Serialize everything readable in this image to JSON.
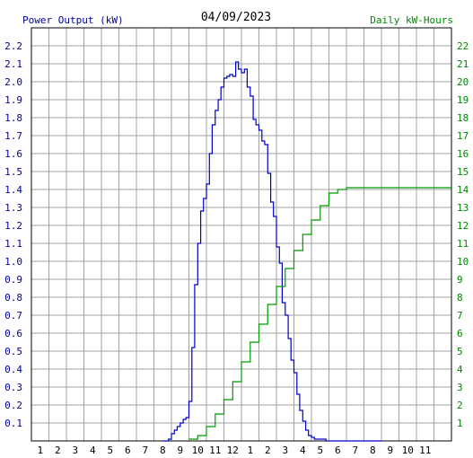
{
  "chart_data": {
    "type": "line",
    "title": "04/09/2023",
    "left_axis_label": "Power Output (kW)",
    "right_axis_label": "Daily kW-Hours",
    "x_ticks": [
      "1",
      "2",
      "3",
      "4",
      "5",
      "6",
      "7",
      "8",
      "9",
      "10",
      "11",
      "12",
      "1",
      "2",
      "3",
      "4",
      "5",
      "6",
      "7",
      "8",
      "9",
      "10",
      "11"
    ],
    "left_ticks": [
      "2.2",
      "2.1",
      "2.0",
      "1.9",
      "1.8",
      "1.7",
      "1.6",
      "1.5",
      "1.4",
      "1.3",
      "1.2",
      "1.1",
      "1.0",
      "0.9",
      "0.8",
      "0.7",
      "0.6",
      "0.5",
      "0.4",
      "0.3",
      "0.2",
      "0.1"
    ],
    "right_ticks": [
      "22",
      "21",
      "20",
      "19",
      "18",
      "17",
      "16",
      "15",
      "14",
      "13",
      "12",
      "11",
      "10",
      "9",
      "8",
      "7",
      "6",
      "5",
      "4",
      "3",
      "2",
      "1"
    ],
    "xlim_hours": [
      0,
      24
    ],
    "ylim_power_kw": [
      0,
      2.3
    ],
    "ylim_energy_kwh": [
      0,
      23
    ],
    "grid": true,
    "colors": {
      "power": "#0000cc",
      "energy": "#009900",
      "grid": "#a0a0a0",
      "left_text": "#000099",
      "right_text": "#008800",
      "title_text": "#000000"
    },
    "series": [
      {
        "axis": "left",
        "x": [
          7.5,
          7.83,
          8.0,
          8.17,
          8.33,
          8.5,
          8.67,
          8.83,
          9.0,
          9.17,
          9.33,
          9.5,
          9.67,
          9.83,
          10.0,
          10.17,
          10.33,
          10.5,
          10.67,
          10.83,
          11.0,
          11.17,
          11.33,
          11.5,
          11.67,
          11.83,
          12.0,
          12.17,
          12.33,
          12.5,
          12.67,
          12.83,
          13.0,
          13.17,
          13.33,
          13.5,
          13.67,
          13.83,
          14.0,
          14.17,
          14.33,
          14.5,
          14.67,
          14.83,
          15.0,
          15.17,
          15.33,
          15.5,
          15.67,
          15.83,
          16.0,
          16.17,
          16.33,
          16.5,
          16.67,
          16.83,
          17.0,
          17.17,
          17.33,
          17.5,
          17.67,
          17.83,
          18.0,
          18.17,
          18.33,
          18.5,
          18.67,
          18.83,
          19.0,
          19.17,
          19.33,
          19.5,
          19.67,
          19.83,
          20.0
        ],
        "values": [
          0.0,
          0.01,
          0.04,
          0.06,
          0.08,
          0.1,
          0.12,
          0.13,
          0.22,
          0.52,
          0.87,
          1.1,
          1.28,
          1.35,
          1.43,
          1.6,
          1.76,
          1.84,
          1.9,
          1.97,
          2.02,
          2.03,
          2.04,
          2.03,
          2.11,
          2.07,
          2.05,
          2.07,
          1.97,
          1.92,
          1.79,
          1.76,
          1.73,
          1.67,
          1.65,
          1.49,
          1.33,
          1.25,
          1.08,
          0.99,
          0.77,
          0.7,
          0.57,
          0.45,
          0.38,
          0.26,
          0.17,
          0.11,
          0.06,
          0.03,
          0.02,
          0.01,
          0.01,
          0.01,
          0.01,
          0.0,
          0.0,
          0.0,
          0.0,
          0.0,
          0.0,
          0.0,
          0.0,
          0.0,
          0.0,
          0.0,
          0.0,
          0.0,
          0.0,
          0.0,
          0.0,
          0.0,
          0.0,
          0.0,
          0.0
        ]
      },
      {
        "axis": "right",
        "x": [
          9.0,
          9.5,
          10.0,
          10.5,
          11.0,
          11.5,
          12.0,
          12.5,
          13.0,
          13.5,
          14.0,
          14.5,
          15.0,
          15.5,
          16.0,
          16.5,
          17.0,
          17.5,
          18.0,
          18.5,
          19.0,
          19.5,
          20.0,
          21.0,
          22.0,
          23.0,
          24.0
        ],
        "values": [
          0.1,
          0.3,
          0.8,
          1.5,
          2.3,
          3.3,
          4.4,
          5.5,
          6.5,
          7.6,
          8.6,
          9.6,
          10.6,
          11.5,
          12.3,
          13.1,
          13.8,
          14.0,
          14.1,
          14.1,
          14.1,
          14.1,
          14.1,
          14.1,
          14.1,
          14.1,
          14.1
        ]
      }
    ]
  }
}
